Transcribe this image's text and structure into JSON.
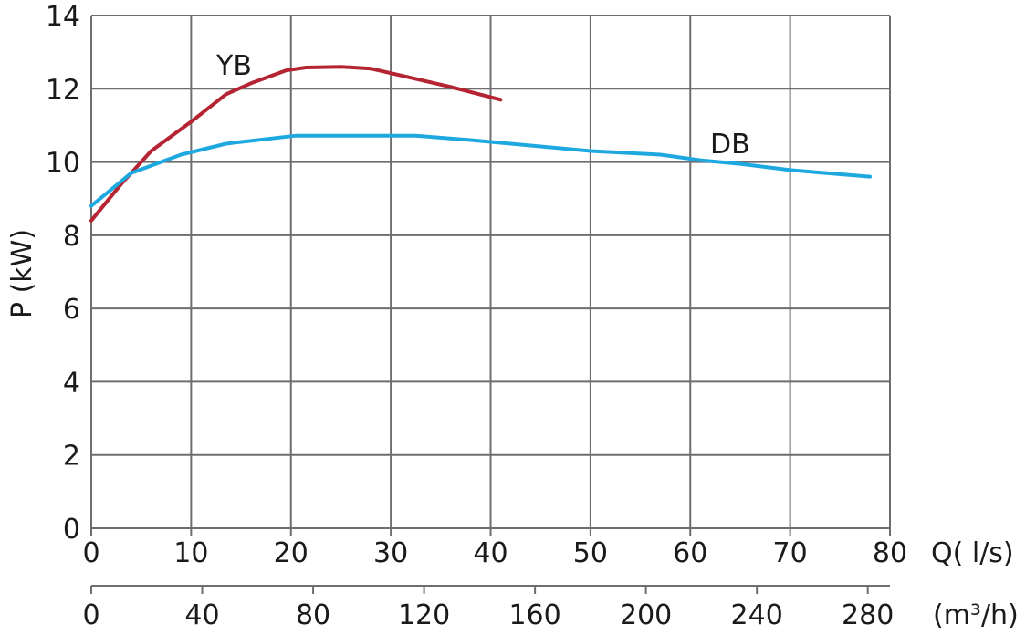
{
  "chart_data": {
    "type": "line",
    "xlabel": "Q( l/s)",
    "x2label": "(m³/h)",
    "ylabel": "P (kW)",
    "xlim": [
      0,
      80
    ],
    "ylim": [
      0,
      14
    ],
    "x2lim": [
      0,
      288
    ],
    "grid": true,
    "x_ticks": [
      "0",
      "10",
      "20",
      "30",
      "40",
      "50",
      "60",
      "70",
      "80"
    ],
    "x2_ticks": [
      "0",
      "40",
      "80",
      "120",
      "160",
      "200",
      "240",
      "280"
    ],
    "y_ticks": [
      "0",
      "2",
      "4",
      "6",
      "8",
      "10",
      "12",
      "14"
    ],
    "series": [
      {
        "name": "YB",
        "color": "#b52432",
        "x": [
          0,
          3,
          6,
          10,
          13.5,
          16,
          19.5,
          21.5,
          25,
          28,
          32,
          36,
          41
        ],
        "y": [
          8.4,
          9.4,
          10.3,
          11.1,
          11.85,
          12.15,
          12.5,
          12.58,
          12.6,
          12.55,
          12.3,
          12.05,
          11.7
        ]
      },
      {
        "name": "DB",
        "color": "#1ea8e0",
        "x": [
          0,
          4,
          9,
          13.5,
          20.5,
          32.5,
          38,
          50,
          57,
          61,
          65,
          70,
          78
        ],
        "y": [
          8.8,
          9.7,
          10.2,
          10.5,
          10.72,
          10.72,
          10.6,
          10.3,
          10.2,
          10.05,
          9.95,
          9.78,
          9.6
        ]
      }
    ]
  }
}
